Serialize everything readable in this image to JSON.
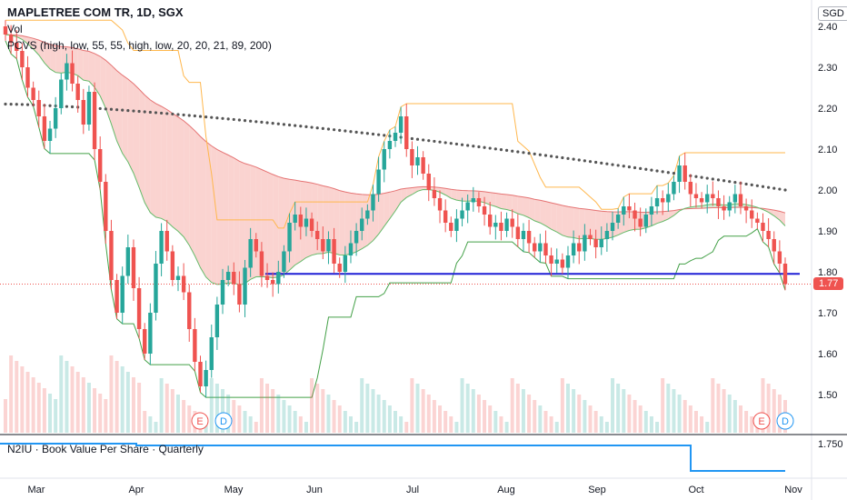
{
  "header": {
    "symbol_title": "MAPLETREE COM TR, 1D, SGX",
    "vol_label": "Vol",
    "indicator_label": "PCVS (high, low, 55, 55, high, low, 20, 20, 21, 89, 200)"
  },
  "currency_badge": "SGD",
  "last_price_label": "1.77",
  "lower_pane": {
    "label": "N2IU · Book Value Per Share · Quarterly",
    "tick": "1.750"
  },
  "events": [
    {
      "letter": "E",
      "kind": "earnings"
    },
    {
      "letter": "D",
      "kind": "dividend"
    },
    {
      "letter": "E",
      "kind": "earnings"
    },
    {
      "letter": "D",
      "kind": "dividend"
    }
  ],
  "colors": {
    "up": "#26a69a",
    "down": "#ef5350",
    "ma200": "#555555",
    "support": "#1f1fd6",
    "book_value": "#2196f3",
    "channel_fill_down": "#f9c8c4",
    "channel_fill_up": "#c8e6c9"
  },
  "chart_data": [
    {
      "type": "candlestick",
      "title": "MAPLETREE COM TR, 1D, SGX",
      "x_ticks": [
        "Mar",
        "Apr",
        "May",
        "Jun",
        "Jul",
        "Aug",
        "Sep",
        "Oct",
        "Nov"
      ],
      "y_ticks": [
        "1.50",
        "1.60",
        "1.70",
        "1.80",
        "1.90",
        "2.00",
        "2.10",
        "2.20",
        "2.30",
        "2.40"
      ],
      "ylim": [
        1.42,
        2.43
      ],
      "close": [
        2.38,
        2.36,
        2.34,
        2.3,
        2.25,
        2.22,
        2.18,
        2.12,
        2.15,
        2.2,
        2.27,
        2.31,
        2.26,
        2.22,
        2.16,
        2.24,
        2.1,
        2.02,
        1.9,
        1.78,
        1.7,
        1.79,
        1.86,
        1.76,
        1.66,
        1.6,
        1.7,
        1.82,
        1.9,
        1.85,
        1.78,
        1.79,
        1.75,
        1.66,
        1.58,
        1.52,
        1.56,
        1.64,
        1.72,
        1.78,
        1.8,
        1.77,
        1.72,
        1.81,
        1.88,
        1.85,
        1.79,
        1.78,
        1.77,
        1.8,
        1.85,
        1.92,
        1.94,
        1.91,
        1.93,
        1.9,
        1.88,
        1.85,
        1.88,
        1.82,
        1.8,
        1.84,
        1.87,
        1.9,
        1.93,
        1.95,
        1.99,
        2.05,
        2.1,
        2.12,
        2.14,
        2.18,
        2.1,
        2.06,
        2.08,
        2.04,
        2.0,
        1.98,
        1.95,
        1.92,
        1.9,
        1.93,
        1.95,
        1.97,
        1.98,
        1.96,
        1.94,
        1.91,
        1.92,
        1.9,
        1.93,
        1.91,
        1.88,
        1.9,
        1.87,
        1.85,
        1.87,
        1.84,
        1.82,
        1.83,
        1.81,
        1.84,
        1.87,
        1.85,
        1.89,
        1.88,
        1.86,
        1.88,
        1.9,
        1.92,
        1.94,
        1.96,
        1.95,
        1.93,
        1.91,
        1.94,
        1.96,
        1.98,
        1.97,
        1.99,
        2.02,
        2.06,
        2.02,
        1.99,
        1.98,
        1.97,
        1.99,
        1.98,
        1.96,
        1.95,
        1.97,
        1.99,
        1.96,
        1.95,
        1.93,
        1.92,
        1.9,
        1.88,
        1.85,
        1.82,
        1.77
      ],
      "ma200_start": 2.21,
      "ma200_end": 2.0,
      "support_level": 1.795,
      "last_close": 1.77
    },
    {
      "type": "line",
      "title": "N2IU · Book Value Per Share · Quarterly",
      "y_ticks": [
        "1.750"
      ],
      "values": [
        1.773,
        1.773,
        1.775,
        1.775,
        1.775,
        1.758
      ]
    }
  ]
}
